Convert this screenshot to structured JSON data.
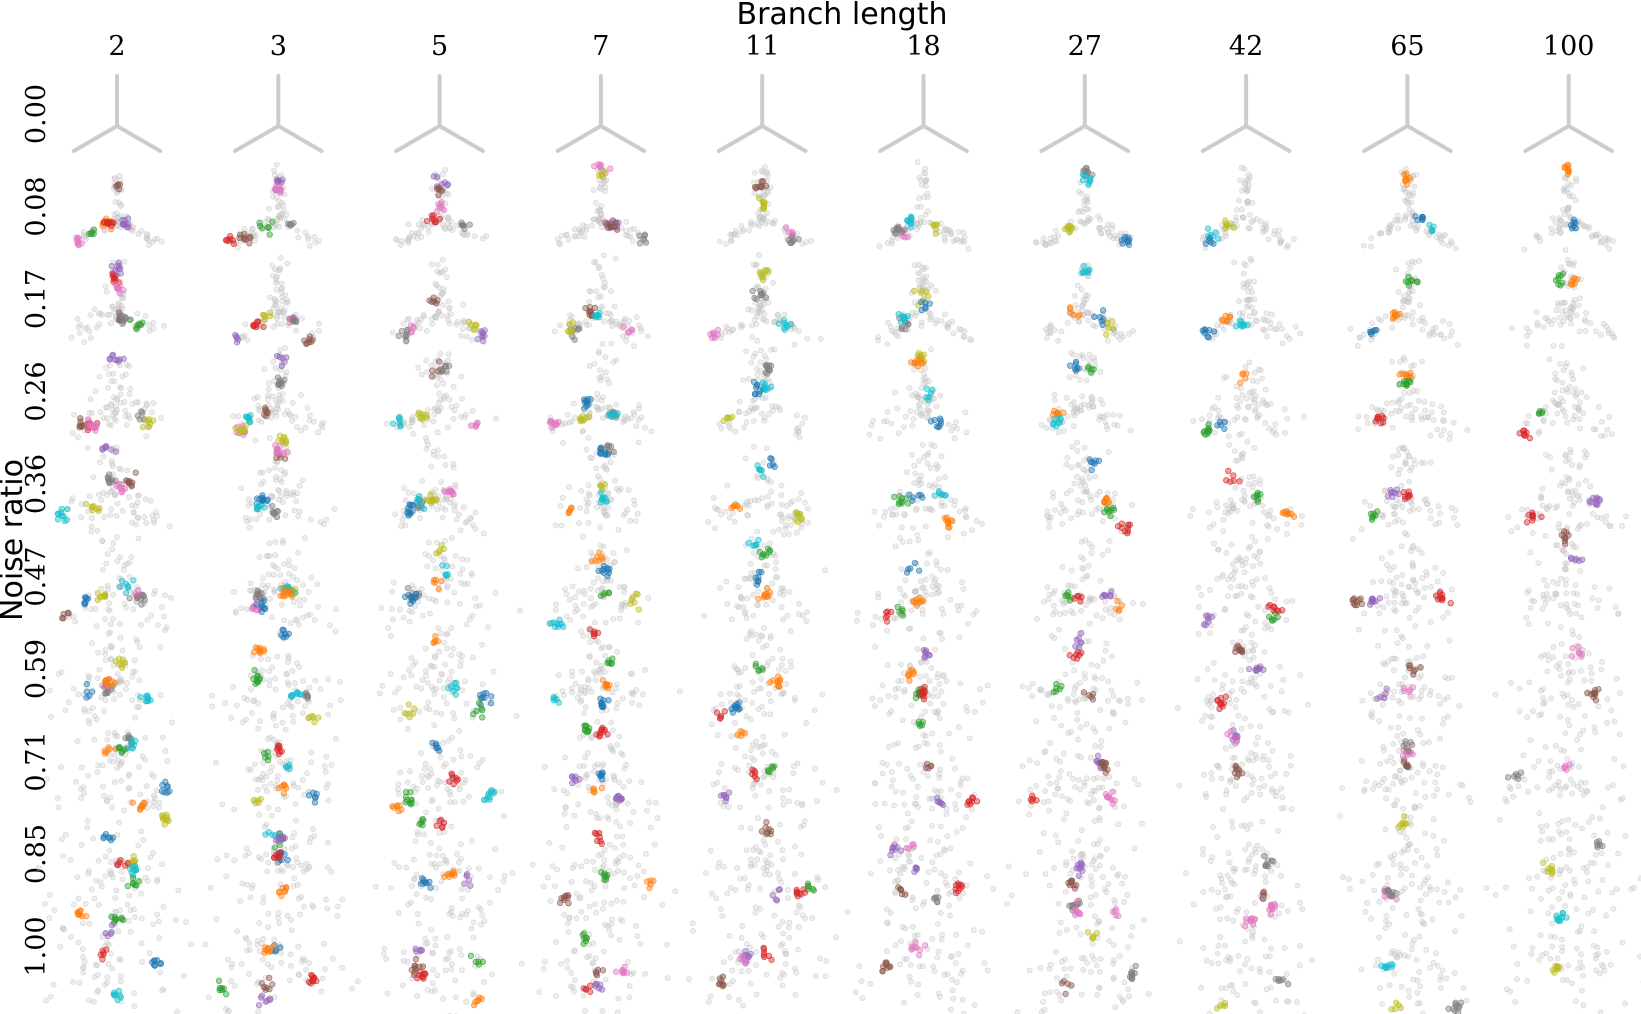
{
  "chart_data": {
    "type": "scatter",
    "layout": "small-multiples grid",
    "xlabel": "Branch length",
    "ylabel": "Noise ratio",
    "branch_lengths": [
      "2",
      "3",
      "5",
      "7",
      "11",
      "18",
      "27",
      "42",
      "65",
      "100"
    ],
    "noise_ratios": [
      "0.00",
      "0.08",
      "0.17",
      "0.26",
      "0.36",
      "0.47",
      "0.59",
      "0.71",
      "0.85",
      "1.00"
    ],
    "panel_content": "three-branch star (Y-shaped) point cloud; gray points = all samples, colored points = highlighted clusters",
    "colors": {
      "background_points": "#cccccc",
      "clusters": [
        "#1f77b4",
        "#ff7f0e",
        "#2ca02c",
        "#d62728",
        "#9467bd",
        "#8c564b",
        "#e377c2",
        "#7f7f7f",
        "#bcbd22",
        "#17becf"
      ]
    }
  }
}
